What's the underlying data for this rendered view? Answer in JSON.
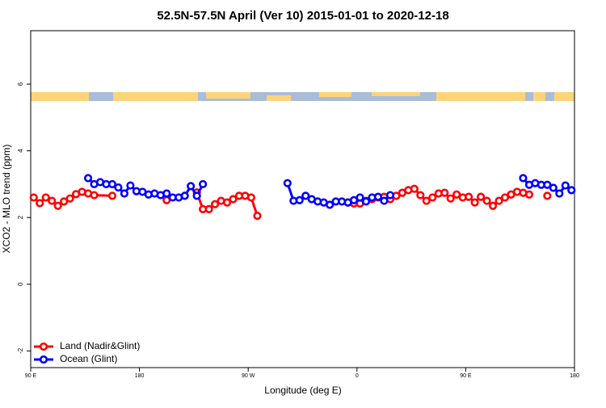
{
  "chart_data": {
    "type": "line",
    "title": "52.5N-57.5N April (Ver 10)   2015-01-01 to 2020-12-18",
    "x_label": "Longitude (deg E)",
    "y_label": "XCO2 - MLO trend (ppm)",
    "xlim": [
      90,
      540
    ],
    "ylim": [
      -2.5,
      7.6
    ],
    "xticks": [
      {
        "value": 90,
        "label": "90 E"
      },
      {
        "value": 180,
        "label": "180"
      },
      {
        "value": 270,
        "label": "90 W"
      },
      {
        "value": 360,
        "label": "0"
      },
      {
        "value": 450,
        "label": "90 E"
      },
      {
        "value": 540,
        "label": "180"
      }
    ],
    "yticks": [
      -2,
      0,
      2,
      4,
      6
    ],
    "legend": "bottomleft",
    "series": [
      {
        "name": "Land (Nadir&Glint)",
        "color": "#ff0000",
        "x": [
          92.5,
          97.5,
          102.5,
          107.5,
          112.5,
          117.5,
          122.5,
          127.5,
          132.5,
          137.5,
          142.5,
          157.5,
          null,
          202.5,
          null,
          227.5,
          232.5,
          237.5,
          242.5,
          247.5,
          252.5,
          257.5,
          262.5,
          267.5,
          272.5,
          277.5,
          null,
          352.5,
          357.5,
          362.5,
          367.5,
          372.5,
          377.5,
          382.5,
          387.5,
          392.5,
          397.5,
          402.5,
          407.5,
          412.5,
          417.5,
          422.5,
          427.5,
          432.5,
          437.5,
          442.5,
          447.5,
          452.5,
          457.5,
          462.5,
          467.5,
          472.5,
          477.5,
          482.5,
          487.5,
          492.5,
          497.5,
          502.5,
          null,
          517.5
        ],
        "values": [
          2.6,
          2.43,
          2.6,
          2.5,
          2.35,
          2.48,
          2.57,
          2.7,
          2.77,
          2.72,
          2.67,
          2.65,
          null,
          2.52,
          null,
          2.75,
          2.25,
          2.25,
          2.4,
          2.5,
          2.45,
          2.55,
          2.65,
          2.65,
          2.6,
          2.05,
          null,
          2.45,
          2.42,
          2.42,
          2.5,
          2.55,
          2.6,
          2.62,
          2.55,
          2.65,
          2.74,
          2.82,
          2.86,
          2.67,
          2.5,
          2.6,
          2.72,
          2.74,
          2.57,
          2.69,
          2.6,
          2.62,
          2.45,
          2.62,
          2.5,
          2.35,
          2.5,
          2.6,
          2.69,
          2.77,
          2.74,
          2.69,
          null,
          2.65
        ]
      },
      {
        "name": "Ocean (Glint)",
        "color": "#0000ff",
        "x": [
          137.5,
          142.5,
          147.5,
          152.5,
          157.5,
          162.5,
          167.5,
          172.5,
          177.5,
          182.5,
          187.5,
          192.5,
          197.5,
          202.5,
          207.5,
          212.5,
          217.5,
          222.5,
          227.5,
          232.5,
          null,
          302.5,
          307.5,
          312.5,
          317.5,
          322.5,
          327.5,
          332.5,
          337.5,
          342.5,
          347.5,
          352.5,
          357.5,
          362.5,
          367.5,
          372.5,
          377.5,
          382.5,
          387.5,
          null,
          497.5,
          502.5,
          507.5,
          512.5,
          517.5,
          522.5,
          527.5,
          532.5,
          537.5
        ],
        "values": [
          3.18,
          3.0,
          3.06,
          3.0,
          3.0,
          2.9,
          2.72,
          2.96,
          2.79,
          2.77,
          2.69,
          2.72,
          2.67,
          2.72,
          2.6,
          2.6,
          2.65,
          2.94,
          2.65,
          3.0,
          null,
          3.03,
          2.5,
          2.52,
          2.65,
          2.55,
          2.48,
          2.45,
          2.38,
          2.48,
          2.48,
          2.45,
          2.52,
          2.6,
          2.48,
          2.6,
          2.62,
          2.5,
          2.67,
          null,
          3.18,
          2.98,
          3.03,
          2.98,
          2.98,
          2.89,
          2.72,
          2.96,
          2.82
        ]
      }
    ]
  }
}
